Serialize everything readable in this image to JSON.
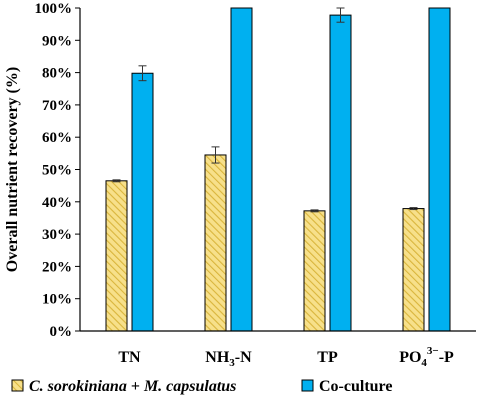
{
  "chart_data": {
    "type": "bar",
    "title": "",
    "ylabel": "Overall nutrient recovery (%)",
    "xlabel": "",
    "ylim": [
      0,
      100
    ],
    "yticks": [
      "0%",
      "10%",
      "20%",
      "30%",
      "40%",
      "50%",
      "60%",
      "70%",
      "80%",
      "90%",
      "100%"
    ],
    "categories": [
      {
        "pre": "TN",
        "sub": "",
        "sup": "",
        "post": ""
      },
      {
        "pre": "NH",
        "sub": "3",
        "sup": "",
        "post": "-N"
      },
      {
        "pre": "TP",
        "sub": "",
        "sup": "",
        "post": ""
      },
      {
        "pre": "PO",
        "sub": "4",
        "sup": "3−",
        "post": "-P"
      }
    ],
    "series": [
      {
        "name_parts": [
          {
            "text": "C. sorokiniana",
            "italic": true
          },
          {
            "text": " + ",
            "italic": false
          },
          {
            "text": "M. capsulatus",
            "italic": true
          }
        ],
        "values": [
          46.5,
          54.5,
          37.2,
          37.9
        ],
        "errors": [
          0.3,
          2.5,
          0.3,
          0.3
        ],
        "color": "#f7e08a",
        "hatch_color": "#d9b53c",
        "pattern": "diagonal-hatch"
      },
      {
        "name_parts": [
          {
            "text": "Co-culture",
            "italic": false
          }
        ],
        "values": [
          79.8,
          100,
          97.8,
          100
        ],
        "errors": [
          2.3,
          0,
          2.2,
          0
        ],
        "color": "#00b0f0",
        "pattern": "solid"
      }
    ],
    "legend_position": "bottom",
    "grid": false
  }
}
